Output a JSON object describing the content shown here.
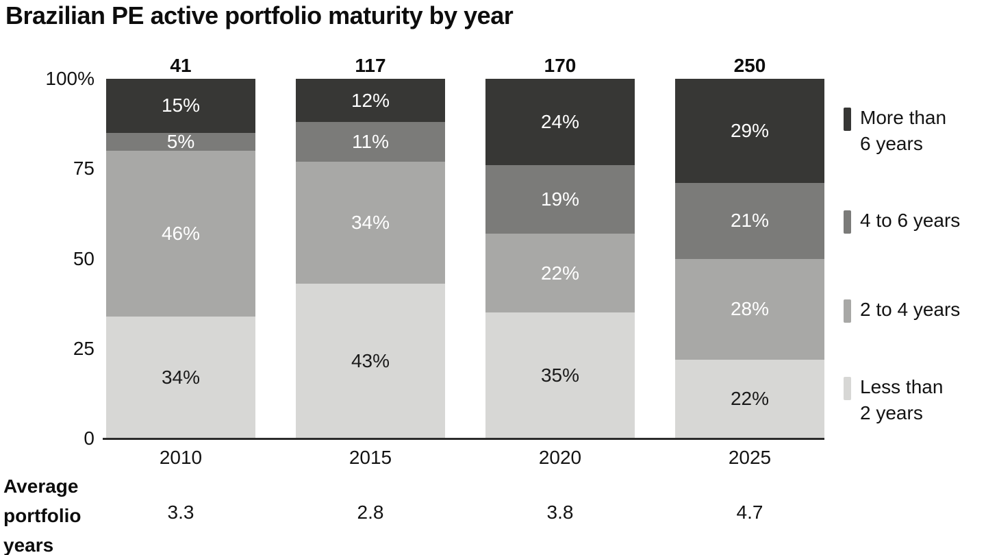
{
  "title": "Brazilian PE active portfolio maturity by year",
  "chart_data": {
    "type": "bar",
    "variant": "stacked-100-percent",
    "title": "Brazilian PE active portfolio maturity by year",
    "categories": [
      "2010",
      "2015",
      "2020",
      "2025"
    ],
    "bar_totals": [
      "41",
      "117",
      "170",
      "250"
    ],
    "value_suffix": "%",
    "stack_order": "top-to-bottom",
    "series": [
      {
        "name": "More than 6 years",
        "color": "#373735",
        "label_color": "#ffffff",
        "values": [
          15,
          12,
          24,
          29
        ]
      },
      {
        "name": "4 to 6 years",
        "color": "#7b7b79",
        "label_color": "#ffffff",
        "values": [
          5,
          11,
          19,
          21
        ]
      },
      {
        "name": "2 to 4 years",
        "color": "#a8a8a6",
        "label_color": "#ffffff",
        "values": [
          46,
          34,
          22,
          28
        ]
      },
      {
        "name": "Less than 2 years",
        "color": "#d7d7d5",
        "label_color": "#1a1a1a",
        "values": [
          34,
          43,
          35,
          22
        ]
      }
    ],
    "y_axis": {
      "range": [
        0,
        100
      ],
      "ticks": [
        {
          "value": 100,
          "label": "100%"
        },
        {
          "value": 75,
          "label": "75"
        },
        {
          "value": 50,
          "label": "50"
        },
        {
          "value": 25,
          "label": "25"
        },
        {
          "value": 0,
          "label": "0"
        }
      ]
    },
    "grid": false,
    "legend": {
      "position": "right",
      "items": [
        {
          "lines": [
            "More than",
            "6 years"
          ],
          "color": "#373735"
        },
        {
          "lines": [
            "4 to 6 years"
          ],
          "color": "#7b7b79"
        },
        {
          "lines": [
            "2 to 4 years"
          ],
          "color": "#a8a8a6"
        },
        {
          "lines": [
            "Less than",
            "2 years"
          ],
          "color": "#d7d7d5"
        }
      ]
    },
    "footer_row": {
      "label_lines": [
        "Average",
        "portfolio",
        "years"
      ],
      "values": [
        "3.3",
        "2.8",
        "3.8",
        "4.7"
      ]
    }
  }
}
